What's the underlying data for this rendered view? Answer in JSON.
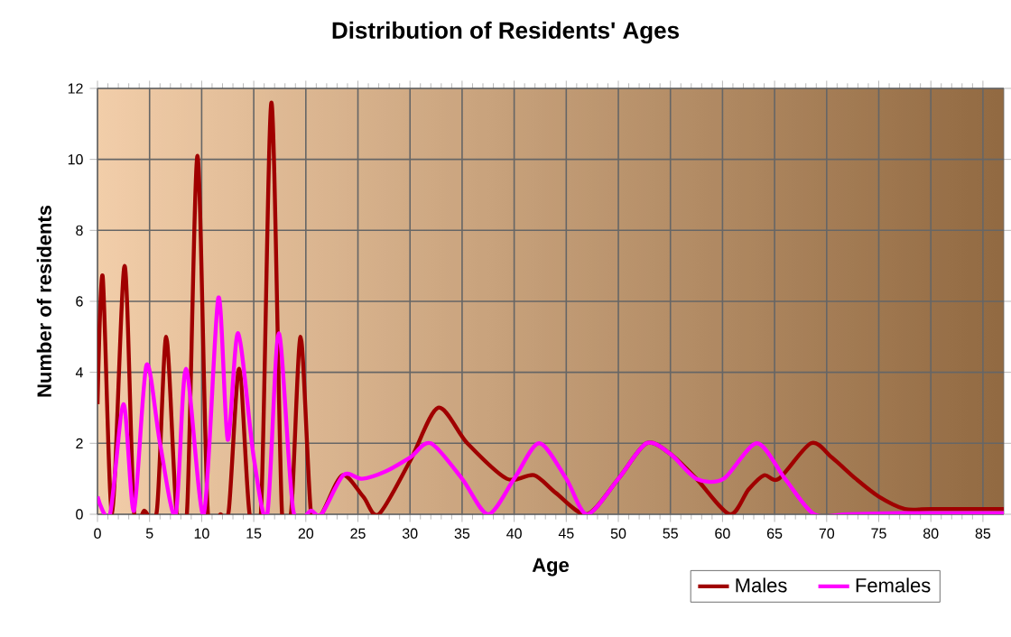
{
  "chart_data": {
    "type": "line",
    "title": "Distribution of Residents' Ages",
    "xlabel": "Age",
    "ylabel": "Number of residents",
    "xlim": [
      0,
      87
    ],
    "ylim": [
      0,
      12
    ],
    "xticks": [
      0,
      5,
      10,
      15,
      20,
      25,
      30,
      35,
      40,
      45,
      50,
      55,
      60,
      65,
      70,
      75,
      80,
      85
    ],
    "yticks": [
      0,
      2,
      4,
      6,
      8,
      10,
      12
    ],
    "grid": true,
    "legend": "bottom right",
    "marker": "none",
    "line_style": "solid",
    "series": [
      {
        "name": "Males",
        "color": "#a00000",
        "x": [
          0,
          0.5,
          1.4,
          2.6,
          3.5,
          4.5,
          5.7,
          6.6,
          7.6,
          8.6,
          9.6,
          10.6,
          11.8,
          12.6,
          13.6,
          14.6,
          15.7,
          16.7,
          17.7,
          18.6,
          19.5,
          20.5,
          21.5,
          23.5,
          25.5,
          27,
          30,
          32.7,
          35.5,
          39.3,
          41.9,
          44,
          47,
          50,
          52.7,
          55,
          57.5,
          60.7,
          62.5,
          64,
          65.4,
          68.5,
          70.5,
          72.8,
          75,
          77.5,
          80,
          84,
          87
        ],
        "values": [
          3.1,
          6.7,
          0,
          7,
          0.1,
          0.1,
          0.1,
          5,
          0,
          0.1,
          10.1,
          0,
          0,
          0.1,
          4.1,
          0,
          0.1,
          11.6,
          0.1,
          0.1,
          5,
          0,
          0,
          1.1,
          0.5,
          0,
          1.5,
          3,
          2,
          1,
          1.1,
          0.6,
          0,
          1,
          2,
          1.7,
          1,
          0,
          0.7,
          1.1,
          1,
          2,
          1.6,
          1,
          0.5,
          0.15,
          0.15,
          0.15,
          0.15
        ]
      },
      {
        "name": "Females",
        "color": "#ff00ff",
        "x": [
          0,
          1.2,
          2.5,
          3.5,
          4.7,
          6,
          7.5,
          8.5,
          10.2,
          11.6,
          12.5,
          13.5,
          15,
          16.3,
          17.4,
          18.8,
          20.5,
          21.5,
          23.6,
          25.4,
          27.6,
          30,
          32,
          35,
          37.5,
          40,
          42.4,
          45,
          47,
          50,
          52.7,
          55,
          57.5,
          60.1,
          63.3,
          66,
          68.8,
          72,
          77,
          82,
          87
        ],
        "values": [
          0.5,
          0,
          3.1,
          0.1,
          4.2,
          2,
          0,
          4.1,
          0,
          6.1,
          2.1,
          5.1,
          1.6,
          0,
          5.1,
          0.1,
          0.1,
          0,
          1.1,
          1,
          1.2,
          1.6,
          2,
          1,
          0,
          1,
          2,
          1,
          0,
          1,
          2,
          1.7,
          1,
          1,
          2,
          1,
          0,
          0,
          0.03,
          0.03,
          0.03
        ]
      }
    ]
  }
}
